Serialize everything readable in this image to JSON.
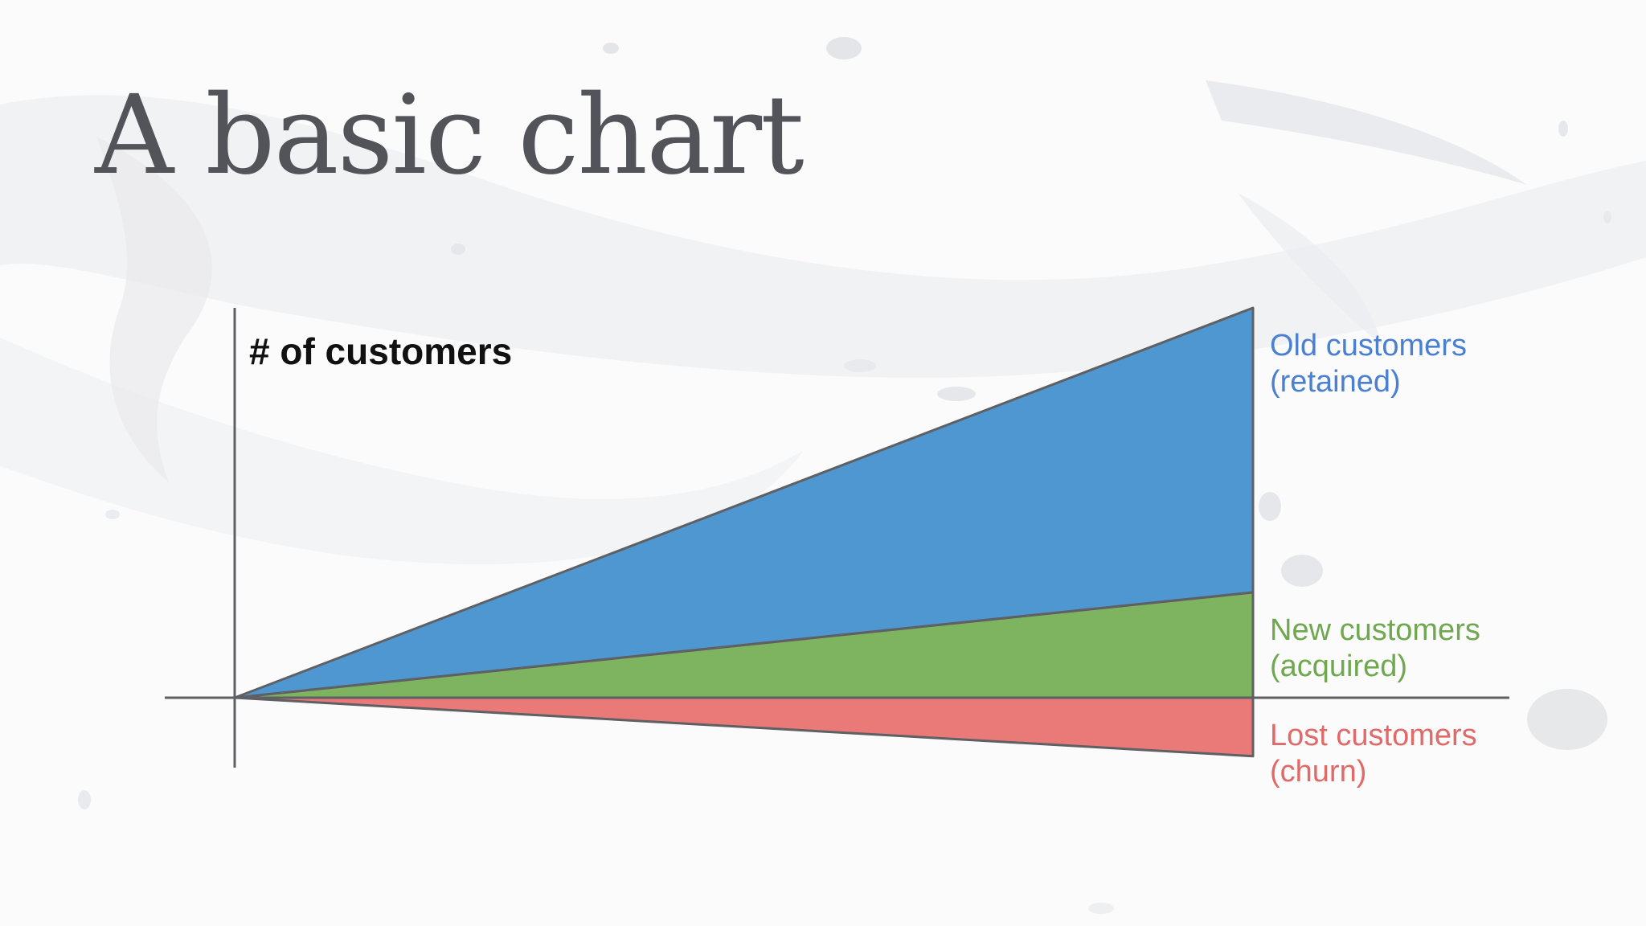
{
  "slide": {
    "title": "A basic chart"
  },
  "colors": {
    "title": "#52545a",
    "axis": "#5f6064",
    "old": "#4e97d1",
    "new": "#7eb45f",
    "lost": "#e97a78",
    "old_text": "#4a7fd1",
    "new_text": "#6fa84e",
    "lost_text": "#e06a68"
  },
  "chart_data": {
    "type": "area",
    "title": "",
    "xlabel": "",
    "ylabel": "# of customers",
    "x": [
      0,
      1
    ],
    "ylim": [
      -0.2,
      1.0
    ],
    "grid": false,
    "series": [
      {
        "name": "Old customers (retained)",
        "label_lines": [
          "Old customers",
          "(retained)"
        ],
        "color": "#4e97d1",
        "text_color": "#4a7fd1",
        "lower": [
          0,
          0.27
        ],
        "upper": [
          0,
          1.0
        ]
      },
      {
        "name": "New customers (acquired)",
        "label_lines": [
          "New customers",
          "(acquired)"
        ],
        "color": "#7eb45f",
        "text_color": "#6fa84e",
        "lower": [
          0,
          0
        ],
        "upper": [
          0,
          0.27
        ]
      },
      {
        "name": "Lost customers (churn)",
        "label_lines": [
          "Lost customers",
          "(churn)"
        ],
        "color": "#e97a78",
        "text_color": "#e06a68",
        "lower": [
          0,
          -0.15
        ],
        "upper": [
          0,
          0
        ]
      }
    ]
  }
}
